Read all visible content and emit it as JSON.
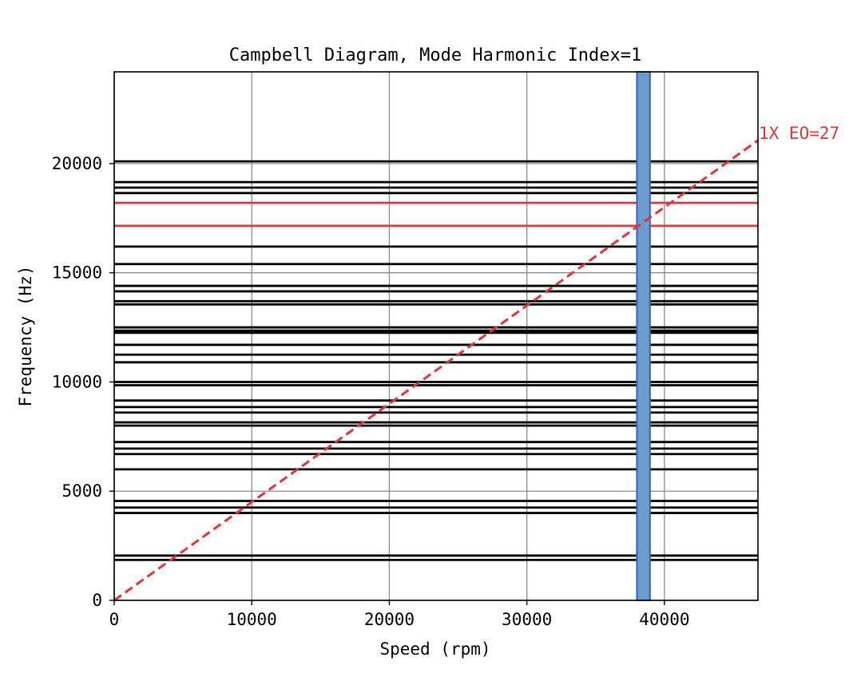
{
  "chart_data": {
    "type": "line",
    "title": "Campbell Diagram, Mode Harmonic Index=1",
    "xlabel": "Speed (rpm)",
    "ylabel": "Frequency (Hz)",
    "xlim": [
      0,
      46800
    ],
    "ylim": [
      0,
      24200
    ],
    "grid": true,
    "x_ticks": [
      0,
      10000,
      20000,
      30000,
      40000
    ],
    "x_tick_labels": [
      "0",
      "10000",
      "20000",
      "30000",
      "40000"
    ],
    "y_ticks": [
      0,
      5000,
      10000,
      15000,
      20000
    ],
    "y_tick_labels": [
      "0",
      "5000",
      "10000",
      "15000",
      "20000"
    ],
    "mode_frequencies_black": [
      1850,
      2050,
      4000,
      4250,
      4550,
      6000,
      6700,
      6950,
      7250,
      8000,
      8150,
      8600,
      8850,
      9150,
      9850,
      10000,
      10900,
      11250,
      11700,
      12250,
      12350,
      12500,
      13550,
      13700,
      14150,
      14400,
      15400,
      16200,
      18650,
      18900,
      19150,
      20100
    ],
    "mode_frequencies_red": [
      17150,
      18200
    ],
    "black_color": "#000000",
    "red_color": "#e8333a",
    "operating_band": {
      "x_min": 38000,
      "x_max": 38950,
      "color": "#6a9dcb",
      "edge_color": "#3b5fc2"
    },
    "engine_order_line": {
      "label": "1X EO=27",
      "engine_order": 27,
      "x_start": 0,
      "x_end": 46800,
      "color": "#e8333a",
      "style": "dashed"
    }
  }
}
